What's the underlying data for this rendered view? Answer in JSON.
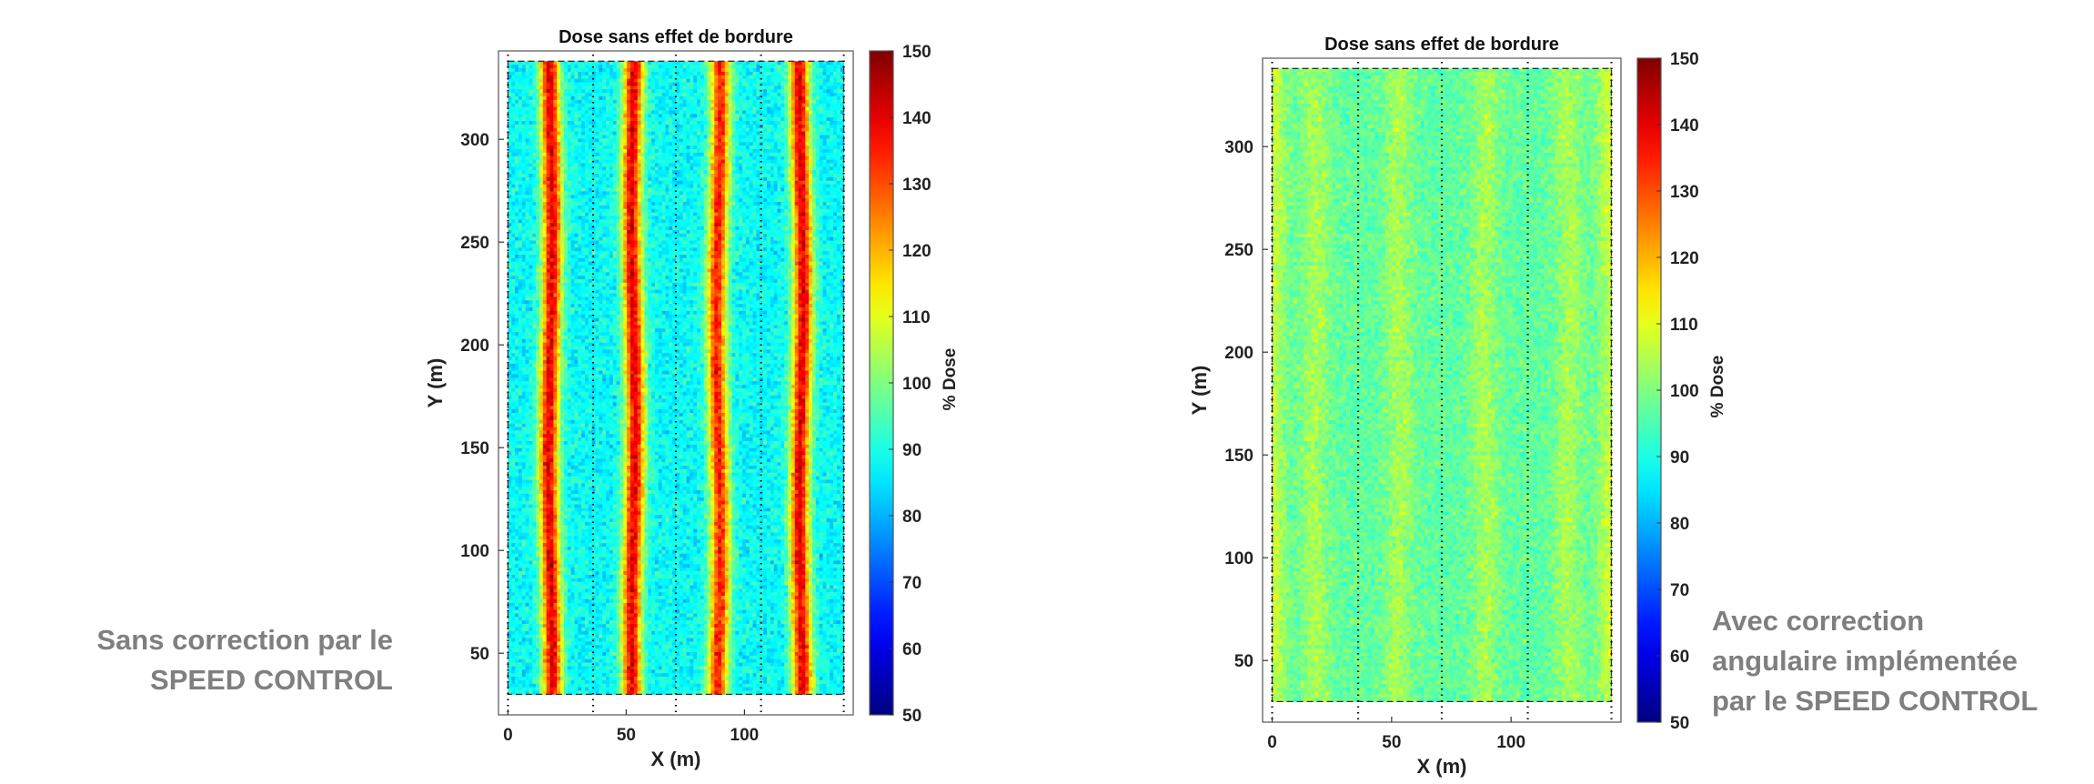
{
  "captions": {
    "left": [
      "Sans correction par le",
      "SPEED CONTROL"
    ],
    "right": [
      "Avec correction",
      "angulaire implémentée",
      "par le SPEED CONTROL"
    ]
  },
  "colormap": "jet",
  "chart_data": [
    {
      "type": "heatmap",
      "title": "Dose sans effet de bordure",
      "xlabel": "X (m)",
      "ylabel": "Y (m)",
      "colorbar_label": "% Dose",
      "xlim": [
        -4,
        146
      ],
      "ylim": [
        20,
        343
      ],
      "field_x": [
        0,
        142
      ],
      "field_y": [
        30,
        338
      ],
      "xticks": [
        0,
        50,
        100
      ],
      "yticks": [
        50,
        100,
        150,
        200,
        250,
        300
      ],
      "colorbar_range": [
        50,
        150
      ],
      "colorbar_ticks": [
        50,
        60,
        70,
        80,
        90,
        100,
        110,
        120,
        130,
        140,
        150
      ],
      "pass_lines_x": [
        0,
        36,
        71,
        107,
        142
      ],
      "base_dose": 88,
      "stripes": [
        {
          "x": 18,
          "peak_dose": 140
        },
        {
          "x": 53,
          "peak_dose": 140
        },
        {
          "x": 89,
          "peak_dose": 135
        },
        {
          "x": 124,
          "peak_dose": 140
        }
      ]
    },
    {
      "type": "heatmap",
      "title": "Dose sans effet de bordure",
      "xlabel": "X (m)",
      "ylabel": "Y (m)",
      "colorbar_label": "% Dose",
      "xlim": [
        -4,
        146
      ],
      "ylim": [
        20,
        343
      ],
      "field_x": [
        0,
        142
      ],
      "field_y": [
        30,
        338
      ],
      "xticks": [
        0,
        50,
        100
      ],
      "yticks": [
        50,
        100,
        150,
        200,
        250,
        300
      ],
      "colorbar_range": [
        50,
        150
      ],
      "colorbar_ticks": [
        50,
        60,
        70,
        80,
        90,
        100,
        110,
        120,
        130,
        140,
        150
      ],
      "pass_lines_x": [
        0,
        36,
        71,
        107,
        142
      ],
      "base_dose": 97,
      "stripes": [
        {
          "x": 0,
          "peak_dose": 107
        },
        {
          "x": 18,
          "peak_dose": 104
        },
        {
          "x": 53,
          "peak_dose": 104
        },
        {
          "x": 89,
          "peak_dose": 104
        },
        {
          "x": 124,
          "peak_dose": 104
        },
        {
          "x": 142,
          "peak_dose": 107
        }
      ]
    }
  ]
}
